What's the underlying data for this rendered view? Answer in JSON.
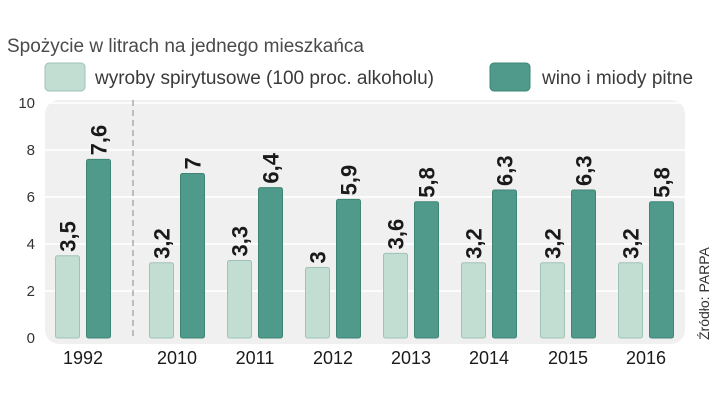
{
  "chart_data": {
    "type": "bar",
    "title": "Spożycie w litrach na jednego mieszkańca",
    "categories": [
      "1992",
      "2010",
      "2011",
      "2012",
      "2013",
      "2014",
      "2015",
      "2016"
    ],
    "series": [
      {
        "name": "wyroby spirytusowe (100 proc. alkoholu)",
        "color": "#c2ddd2",
        "values": [
          3.5,
          3.2,
          3.3,
          3,
          3.6,
          3.2,
          3.2,
          3.2
        ],
        "labels": [
          "3,5",
          "3,2",
          "3,3",
          "3",
          "3,6",
          "3,2",
          "3,2",
          "3,2"
        ]
      },
      {
        "name": "wino i miody pitne",
        "color": "#4f9a8a",
        "values": [
          7.6,
          7,
          6.4,
          5.9,
          5.8,
          6.3,
          6.3,
          5.8
        ],
        "labels": [
          "7,6",
          "7",
          "6,4",
          "5,9",
          "5,8",
          "6,3",
          "6,3",
          "5,8"
        ]
      }
    ],
    "yticks": [
      "0",
      "2",
      "4",
      "6",
      "8",
      "10"
    ],
    "ylim": [
      0,
      10
    ],
    "source": "Źródło: PARPA",
    "grid": true,
    "legend": "top"
  }
}
